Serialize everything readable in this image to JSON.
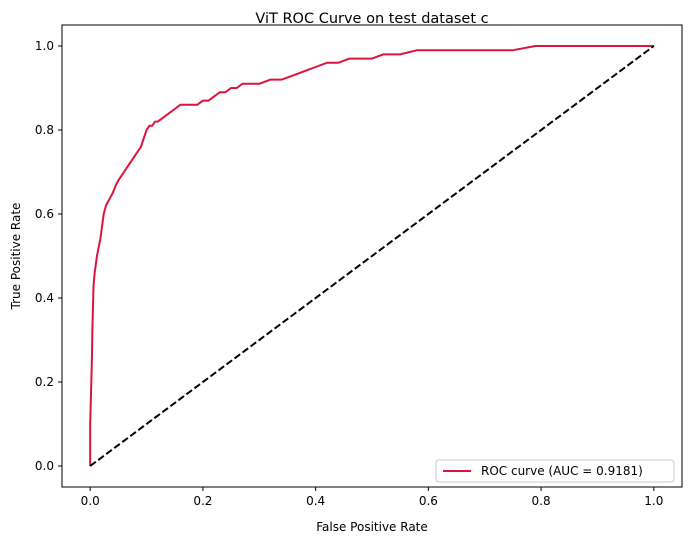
{
  "chart_data": {
    "type": "line",
    "title": "ViT ROC Curve on test dataset c",
    "xlabel": "False Positive Rate",
    "ylabel": "True Positive Rate",
    "xlim": [
      -0.05,
      1.05
    ],
    "ylim": [
      -0.05,
      1.05
    ],
    "xticks": [
      "0.0",
      "0.2",
      "0.4",
      "0.6",
      "0.8",
      "1.0"
    ],
    "yticks": [
      "0.0",
      "0.2",
      "0.4",
      "0.6",
      "0.8",
      "1.0"
    ],
    "grid": false,
    "legend_position": "lower-right",
    "series": [
      {
        "name": "ROC curve (AUC = 0.9181)",
        "color": "#dc143c",
        "style": "solid",
        "x": [
          0.0,
          0.0,
          0.003,
          0.004,
          0.005,
          0.006,
          0.008,
          0.01,
          0.012,
          0.015,
          0.018,
          0.02,
          0.024,
          0.028,
          0.032,
          0.036,
          0.04,
          0.046,
          0.05,
          0.055,
          0.06,
          0.065,
          0.07,
          0.075,
          0.08,
          0.085,
          0.09,
          0.095,
          0.1,
          0.105,
          0.11,
          0.115,
          0.12,
          0.13,
          0.14,
          0.15,
          0.16,
          0.17,
          0.18,
          0.19,
          0.2,
          0.21,
          0.22,
          0.23,
          0.24,
          0.25,
          0.26,
          0.27,
          0.28,
          0.3,
          0.32,
          0.34,
          0.36,
          0.38,
          0.4,
          0.42,
          0.44,
          0.46,
          0.48,
          0.5,
          0.52,
          0.55,
          0.58,
          0.6,
          0.62,
          0.65,
          0.7,
          0.75,
          0.79,
          0.85,
          0.9,
          0.95,
          1.0
        ],
        "y": [
          0.0,
          0.1,
          0.25,
          0.33,
          0.38,
          0.43,
          0.46,
          0.48,
          0.5,
          0.52,
          0.54,
          0.56,
          0.6,
          0.62,
          0.63,
          0.64,
          0.65,
          0.67,
          0.68,
          0.69,
          0.7,
          0.71,
          0.72,
          0.73,
          0.74,
          0.75,
          0.76,
          0.78,
          0.8,
          0.81,
          0.81,
          0.82,
          0.82,
          0.83,
          0.84,
          0.85,
          0.86,
          0.86,
          0.86,
          0.86,
          0.87,
          0.87,
          0.88,
          0.89,
          0.89,
          0.9,
          0.9,
          0.91,
          0.91,
          0.91,
          0.92,
          0.92,
          0.93,
          0.94,
          0.95,
          0.96,
          0.96,
          0.97,
          0.97,
          0.97,
          0.98,
          0.98,
          0.99,
          0.99,
          0.99,
          0.99,
          0.99,
          0.99,
          1.0,
          1.0,
          1.0,
          1.0,
          1.0
        ]
      },
      {
        "color": "#000000",
        "style": "dashed",
        "x": [
          0.0,
          1.0
        ],
        "y": [
          0.0,
          1.0
        ]
      }
    ]
  }
}
